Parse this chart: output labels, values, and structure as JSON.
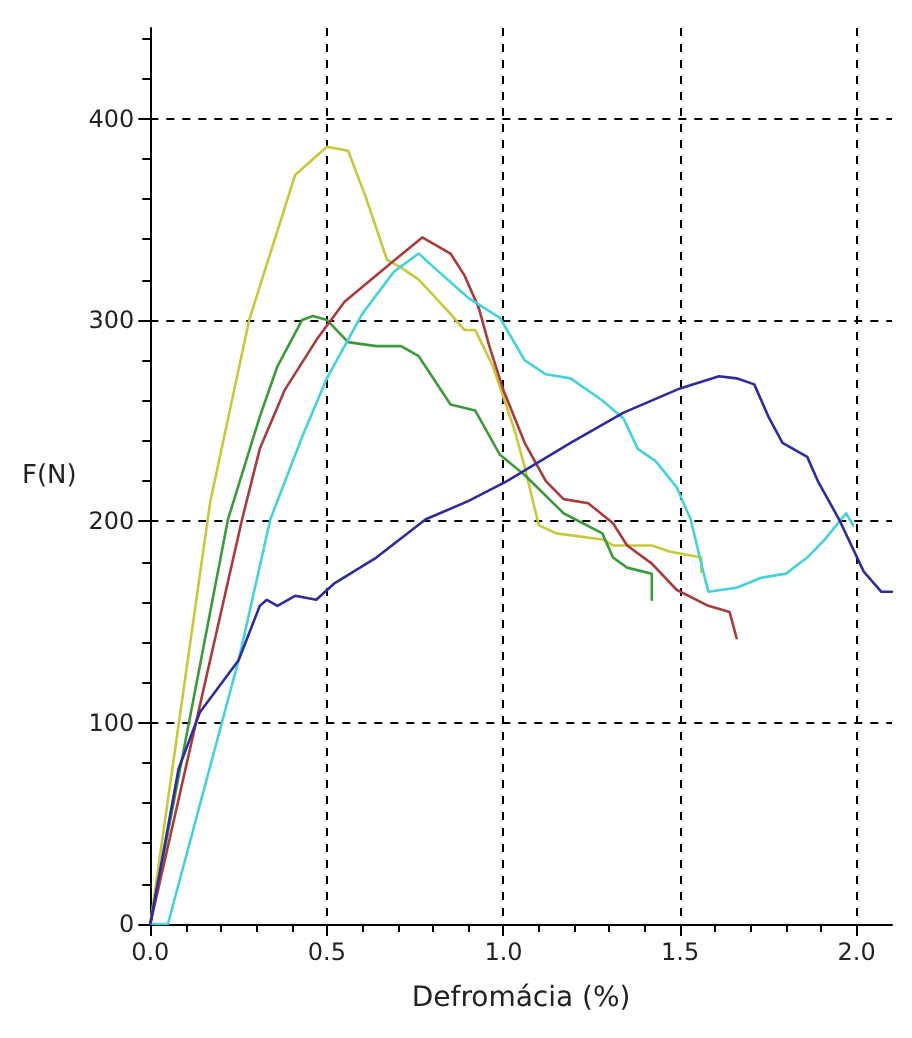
{
  "chart_data": {
    "type": "line",
    "xlabel": "Defromácia (%)",
    "ylabel": "F(N)",
    "xlim": [
      0,
      2.1
    ],
    "ylim": [
      0,
      445
    ],
    "xticks": [
      {
        "value": 0,
        "label": "0.0"
      },
      {
        "value": 0.5,
        "label": "0.5"
      },
      {
        "value": 1,
        "label": "1.0"
      },
      {
        "value": 1.5,
        "label": "1.5"
      },
      {
        "value": 2,
        "label": "2.0"
      }
    ],
    "yticks": [
      0,
      100,
      200,
      300,
      400
    ],
    "grid": true,
    "marker": "none",
    "line_style": "solid",
    "series": [
      {
        "color": "#c8c83c",
        "x": [
          0,
          0.17,
          0.28,
          0.41,
          0.5,
          0.56,
          0.61,
          0.67,
          0.71,
          0.76,
          0.85,
          0.89,
          0.92,
          0.97,
          1.03,
          1.06,
          1.1,
          1.15,
          1.28,
          1.31,
          1.42,
          1.47,
          1.56,
          1.56
        ],
        "values": [
          0,
          210,
          300,
          372,
          386,
          384,
          361,
          330,
          326,
          320,
          303,
          295,
          295,
          277,
          246,
          227,
          198,
          194,
          191,
          188,
          188,
          185,
          182,
          175
        ]
      },
      {
        "color": "#3c9a3c",
        "x": [
          0,
          0.22,
          0.31,
          0.36,
          0.43,
          0.46,
          0.5,
          0.56,
          0.64,
          0.71,
          0.76,
          0.85,
          0.92,
          0.99,
          1.06,
          1.17,
          1.28,
          1.31,
          1.35,
          1.42,
          1.42
        ],
        "values": [
          0,
          201,
          252,
          277,
          300,
          302,
          300,
          289,
          287,
          287,
          282,
          258,
          255,
          233,
          223,
          204,
          194,
          182,
          177,
          174,
          161
        ]
      },
      {
        "color": "#a83c3c",
        "x": [
          0,
          0.26,
          0.31,
          0.38,
          0.47,
          0.55,
          0.68,
          0.77,
          0.85,
          0.89,
          0.93,
          0.96,
          1.0,
          1.06,
          1.12,
          1.17,
          1.24,
          1.31,
          1.35,
          1.42,
          1.49,
          1.58,
          1.64,
          1.66
        ],
        "values": [
          0,
          201,
          236,
          265,
          290,
          309,
          328,
          341,
          333,
          322,
          306,
          287,
          265,
          239,
          220,
          211,
          209,
          199,
          188,
          179,
          166,
          158,
          155,
          142
        ]
      },
      {
        "color": "#46d2d8",
        "x": [
          0,
          0.05,
          0.25,
          0.34,
          0.43,
          0.5,
          0.6,
          0.69,
          0.76,
          0.81,
          0.9,
          0.99,
          1.06,
          1.12,
          1.19,
          1.28,
          1.34,
          1.38,
          1.43,
          1.49,
          1.53,
          1.56,
          1.58,
          1.66,
          1.73,
          1.8,
          1.86,
          1.91,
          1.97,
          1.99
        ],
        "values": [
          0,
          0,
          131,
          201,
          242,
          271,
          303,
          324,
          333,
          325,
          311,
          301,
          280,
          273,
          271,
          260,
          251,
          236,
          230,
          217,
          201,
          179,
          165,
          167,
          172,
          174,
          182,
          191,
          204,
          198
        ]
      },
      {
        "color": "#2c2c9c",
        "x": [
          0,
          0.08,
          0.14,
          0.25,
          0.31,
          0.33,
          0.36,
          0.41,
          0.47,
          0.52,
          0.64,
          0.78,
          0.9,
          1.01,
          1.19,
          1.34,
          1.5,
          1.61,
          1.66,
          1.71,
          1.75,
          1.79,
          1.86,
          1.89,
          1.95,
          2.02,
          2.07,
          2.1
        ],
        "values": [
          0,
          77,
          105,
          131,
          158,
          161,
          158,
          163,
          161,
          169,
          182,
          201,
          210,
          220,
          239,
          254,
          266,
          272,
          271,
          268,
          252,
          239,
          232,
          220,
          201,
          175,
          165,
          165
        ]
      }
    ]
  }
}
